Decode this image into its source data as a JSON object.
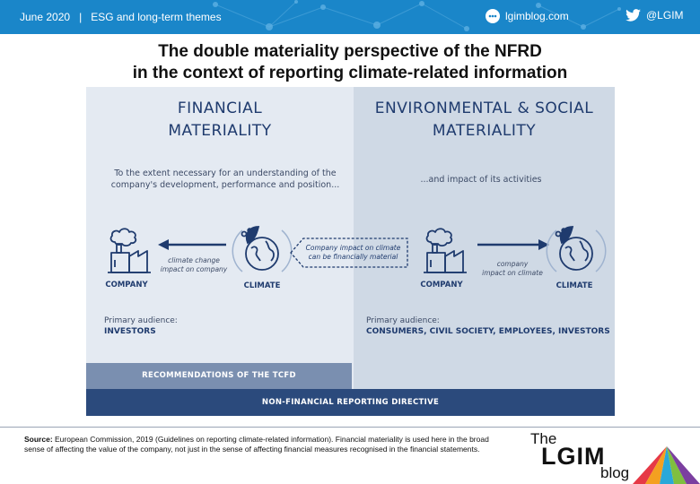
{
  "banner": {
    "date": "June 2020",
    "separator": "|",
    "section": "ESG and long-term themes",
    "blog_url": "lgimblog.com",
    "twitter_handle": "@LGIM"
  },
  "title": {
    "line1": "The double materiality perspective of the NFRD",
    "line2": "in the context of reporting climate-related information"
  },
  "diagram": {
    "financial": {
      "heading_line1": "FINANCIAL",
      "heading_line2": "MATERIALITY",
      "desc_line1": "To the extent necessary for an understanding of the",
      "desc_line2": "company's development, performance and position...",
      "company_label": "COMPANY",
      "climate_label": "CLIMATE",
      "arrow_line1": "climate change",
      "arrow_line2": "impact on company",
      "audience_label": "Primary audience:",
      "audience_value": "INVESTORS"
    },
    "center": {
      "line1": "Company impact on climate",
      "line2": "can be financially material"
    },
    "environmental": {
      "heading_line1": "ENVIRONMENTAL & SOCIAL",
      "heading_line2": "MATERIALITY",
      "desc": "...and impact of its activities",
      "company_label": "COMPANY",
      "climate_label": "CLIMATE",
      "arrow_line1": "company",
      "arrow_line2": "impact on climate",
      "audience_label": "Primary audience:",
      "audience_value": "CONSUMERS, CIVIL SOCIETY, EMPLOYEES, INVESTORS"
    },
    "tcfd_bar": "RECOMMENDATIONS OF THE TCFD",
    "nfrd_bar": "NON-FINANCIAL REPORTING DIRECTIVE",
    "colors": {
      "left_pane": "#e4eaf2",
      "right_pane": "#cfd9e5",
      "tcfd_bar": "#7a8fb0",
      "nfrd_bar": "#2b4a7c",
      "ink": "#1f3b6e"
    },
    "icons": [
      "factory-icon",
      "globe-leaf-icon",
      "arrow-left-icon",
      "arrow-right-icon"
    ]
  },
  "footer": {
    "source_label": "Source:",
    "source_text": " European Commission, 2019 (Guidelines on reporting climate-related information). Financial materiality is used here in the broad sense of affecting the value of the company, not just in the sense of affecting financial measures recognised in the financial statements.",
    "logo_the": "The",
    "logo_lgim": "LGIM",
    "logo_blog": "blog"
  },
  "brand_color": "#1a86c9"
}
